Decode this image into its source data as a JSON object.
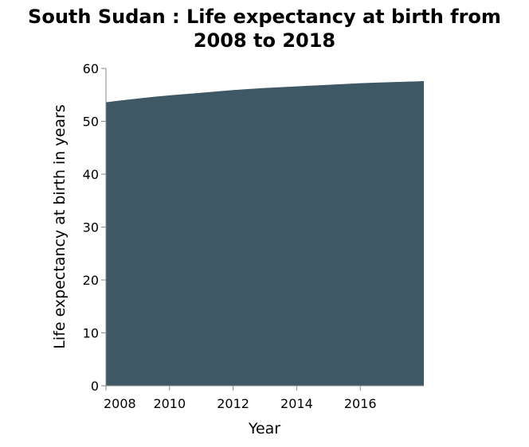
{
  "chart_data": {
    "type": "area",
    "title_lines": [
      "South Sudan : Life expectancy at birth from",
      "2008 to 2018"
    ],
    "xlabel": "Year",
    "ylabel": "Life expectancy at birth in years",
    "x": [
      2008,
      2009,
      2010,
      2011,
      2012,
      2013,
      2014,
      2015,
      2016,
      2017,
      2018
    ],
    "series": [
      {
        "values": [
          53.6,
          54.3,
          54.9,
          55.4,
          55.9,
          56.3,
          56.6,
          56.9,
          57.2,
          57.4,
          57.6
        ]
      }
    ],
    "xlim": [
      2008,
      2018
    ],
    "ylim": [
      0,
      60
    ],
    "x_ticks": [
      "2008",
      "2010",
      "2012",
      "2014",
      "2016"
    ],
    "y_ticks": [
      "0",
      "10",
      "20",
      "30",
      "40",
      "50",
      "60"
    ],
    "area_color": "#3e5866",
    "grid": false
  }
}
